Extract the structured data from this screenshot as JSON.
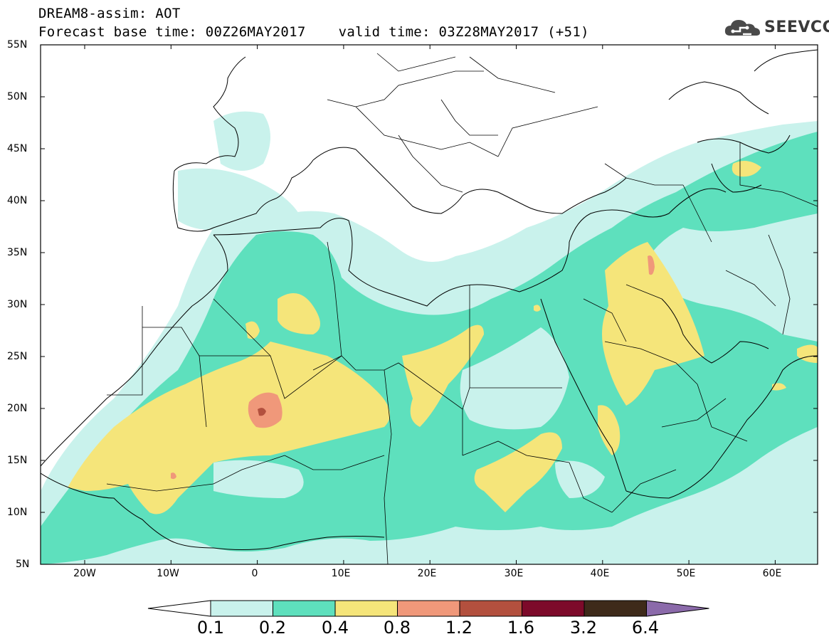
{
  "title": {
    "line1": "DREAM8-assim: AOT",
    "base_time": "Forecast base time: 00Z26MAY2017",
    "valid_time": "valid time: 03Z28MAY2017 (+51)"
  },
  "logo": {
    "text": "SEEVCCC",
    "icon": "cloud-logo-icon"
  },
  "axes": {
    "lat_labels": [
      "55N",
      "50N",
      "45N",
      "40N",
      "35N",
      "30N",
      "25N",
      "20N",
      "15N",
      "10N",
      "5N"
    ],
    "lon_labels": [
      "20W",
      "10W",
      "0",
      "10E",
      "20E",
      "30E",
      "40E",
      "50E",
      "60E"
    ]
  },
  "colorbar": {
    "labels": [
      "0.1",
      "0.2",
      "0.4",
      "0.8",
      "1.2",
      "1.6",
      "3.2",
      "6.4"
    ],
    "colors": [
      "#ffffff",
      "#c9f2ec",
      "#5ee0bd",
      "#f5e57a",
      "#f0987a",
      "#b3503e",
      "#7d0a2a",
      "#3e2a1a",
      "#8b6aaa"
    ]
  },
  "map_colors": {
    "level_0_1": "#c9f2ec",
    "level_0_2": "#5ee0bd",
    "level_0_4": "#f5e57a",
    "level_0_8": "#f0987a",
    "level_1_2": "#b3503e"
  }
}
